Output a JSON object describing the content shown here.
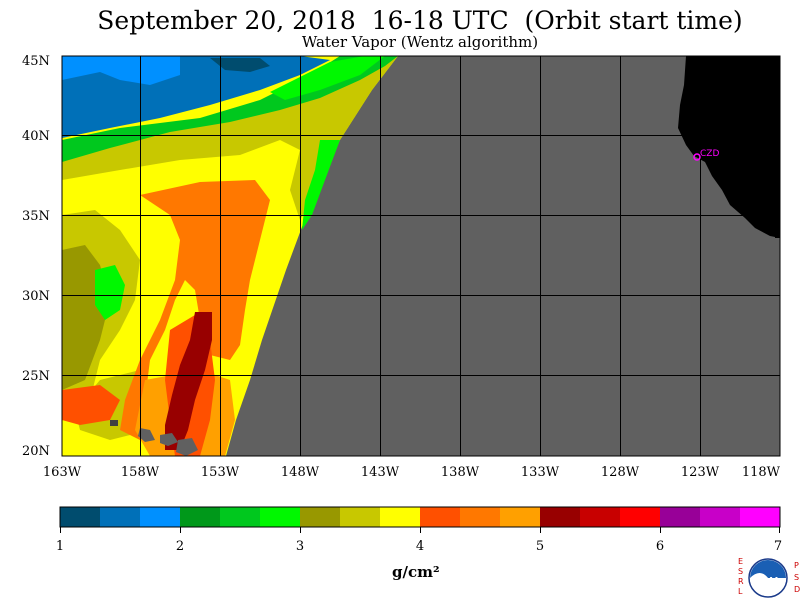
{
  "header": {
    "title": "September 20, 2018  16-18 UTC  (Orbit start time)",
    "subtitle": "Water Vapor (Wentz algorithm)"
  },
  "map": {
    "lat_labels": [
      "45N",
      "40N",
      "35N",
      "30N",
      "25N",
      "20N"
    ],
    "lon_labels": [
      "163W",
      "158W",
      "153W",
      "148W",
      "143W",
      "138W",
      "133W",
      "128W",
      "123W",
      "118W"
    ],
    "station_label": "CZD",
    "colors": {
      "nodata": "#606060",
      "land": "#000000",
      "station": "#ff00ff"
    }
  },
  "colorbar": {
    "colors": [
      "#004c6e",
      "#0070b8",
      "#0090ff",
      "#00981a",
      "#00c81e",
      "#00f800",
      "#989800",
      "#c8c800",
      "#ffff00",
      "#ff5000",
      "#ff7800",
      "#ffa000",
      "#980000",
      "#c80000",
      "#ff0000",
      "#980098",
      "#c800c8",
      "#ff00ff"
    ],
    "tick_labels": [
      "1",
      "2",
      "3",
      "4",
      "5",
      "6",
      "7"
    ],
    "units": "g/cm²"
  },
  "logo": {
    "text": "NOAA",
    "left_letters": [
      "E",
      "S",
      "R",
      "L"
    ],
    "right_letters": [
      "P",
      "S",
      "D"
    ]
  }
}
